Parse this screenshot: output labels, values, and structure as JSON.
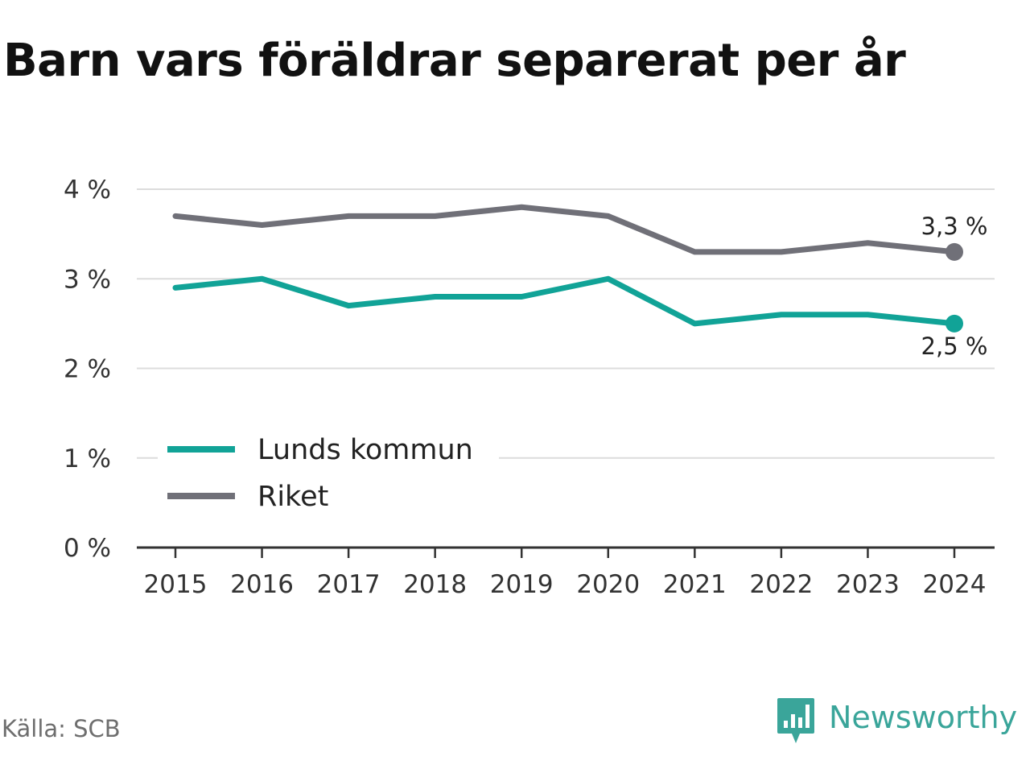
{
  "title": "Barn vars föräldrar separerat per år",
  "source": "Källa: SCB",
  "brand": {
    "name": "Newsworthy",
    "icon": "newsworthy-logo-icon",
    "color": "#3aa59a"
  },
  "chart_data": {
    "type": "line",
    "title": "Barn vars föräldrar separerat per år",
    "xlabel": "",
    "ylabel": "",
    "categories": [
      "2015",
      "2016",
      "2017",
      "2018",
      "2019",
      "2020",
      "2021",
      "2022",
      "2023",
      "2024"
    ],
    "ylim": [
      0,
      4
    ],
    "yticks": [
      0,
      1,
      2,
      3,
      4
    ],
    "ytick_labels": [
      "0 %",
      "1 %",
      "2 %",
      "3 %",
      "4 %"
    ],
    "grid": true,
    "legend_position": "bottom-left",
    "series": [
      {
        "name": "Lunds kommun",
        "color": "#11a397",
        "values": [
          2.9,
          3.0,
          2.7,
          2.8,
          2.8,
          3.0,
          2.5,
          2.6,
          2.6,
          2.5
        ],
        "end_label": "2,5 %",
        "end_label_position": "below"
      },
      {
        "name": "Riket",
        "color": "#707078",
        "values": [
          3.7,
          3.6,
          3.7,
          3.7,
          3.8,
          3.7,
          3.3,
          3.3,
          3.4,
          3.3
        ],
        "end_label": "3,3 %",
        "end_label_position": "above"
      }
    ]
  }
}
